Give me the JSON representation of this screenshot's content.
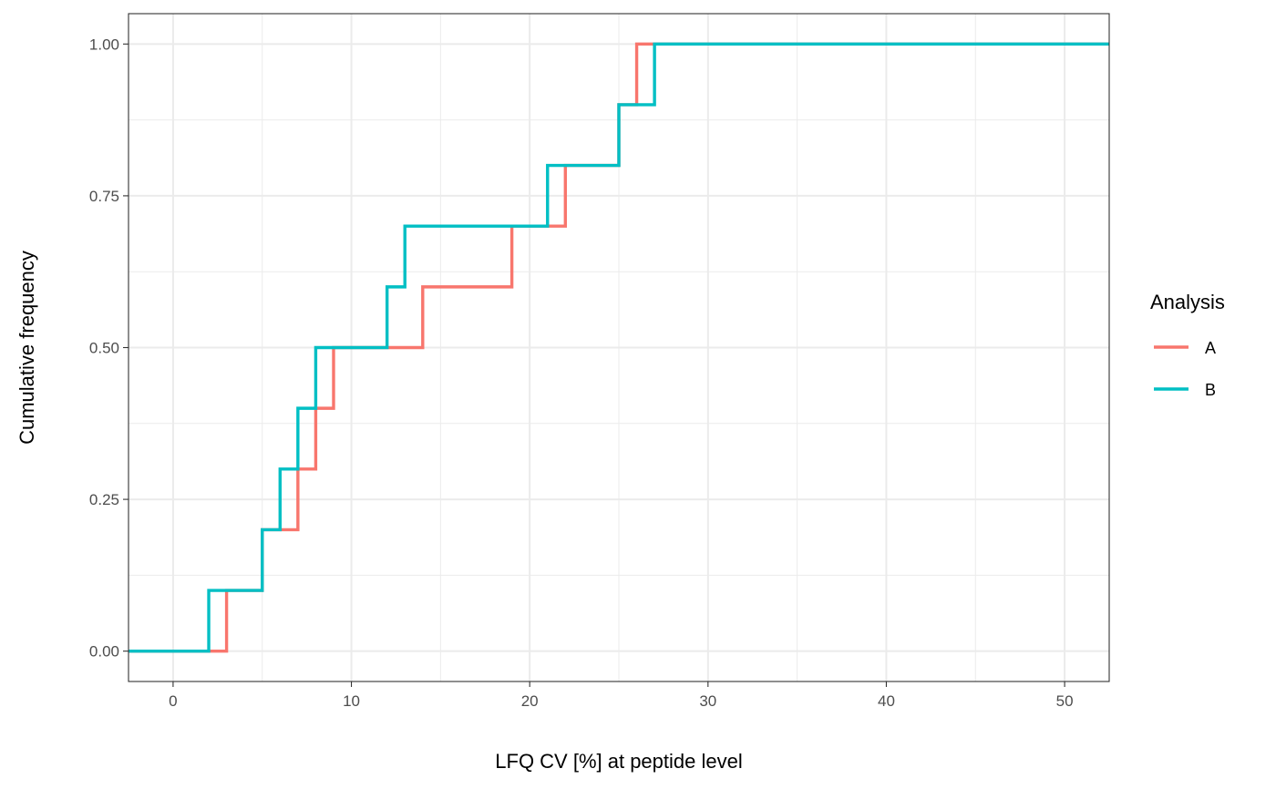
{
  "chart_data": {
    "type": "line",
    "step": true,
    "xlabel": "LFQ CV [%] at peptide level",
    "ylabel": "Cumulative frequency",
    "xlim": [
      -2.5,
      52.5
    ],
    "ylim": [
      -0.05,
      1.05
    ],
    "xticks": [
      0,
      10,
      20,
      30,
      40,
      50
    ],
    "yticks": [
      0,
      0.25,
      0.5,
      0.75,
      1.0
    ],
    "xtick_labels": [
      "0",
      "10",
      "20",
      "30",
      "40",
      "50"
    ],
    "ytick_labels": [
      "0.00",
      "0.25",
      "0.50",
      "0.75",
      "1.00"
    ],
    "grid": true,
    "legend": {
      "title": "Analysis",
      "position": "right"
    },
    "series": [
      {
        "name": "A",
        "color": "#F8766D",
        "points": [
          [
            -2.5,
            0.0
          ],
          [
            3,
            0.1
          ],
          [
            5,
            0.2
          ],
          [
            7,
            0.3
          ],
          [
            8,
            0.4
          ],
          [
            9,
            0.5
          ],
          [
            14,
            0.6
          ],
          [
            19,
            0.7
          ],
          [
            22,
            0.8
          ],
          [
            25,
            0.9
          ],
          [
            26,
            1.0
          ],
          [
            52.5,
            1.0
          ]
        ]
      },
      {
        "name": "B",
        "color": "#00BFC4",
        "points": [
          [
            -2.5,
            0.0
          ],
          [
            2,
            0.1
          ],
          [
            5,
            0.2
          ],
          [
            6,
            0.3
          ],
          [
            7,
            0.4
          ],
          [
            8,
            0.5
          ],
          [
            12,
            0.6
          ],
          [
            13,
            0.7
          ],
          [
            21,
            0.8
          ],
          [
            25,
            0.9
          ],
          [
            27,
            1.0
          ],
          [
            52.5,
            1.0
          ]
        ]
      }
    ]
  }
}
